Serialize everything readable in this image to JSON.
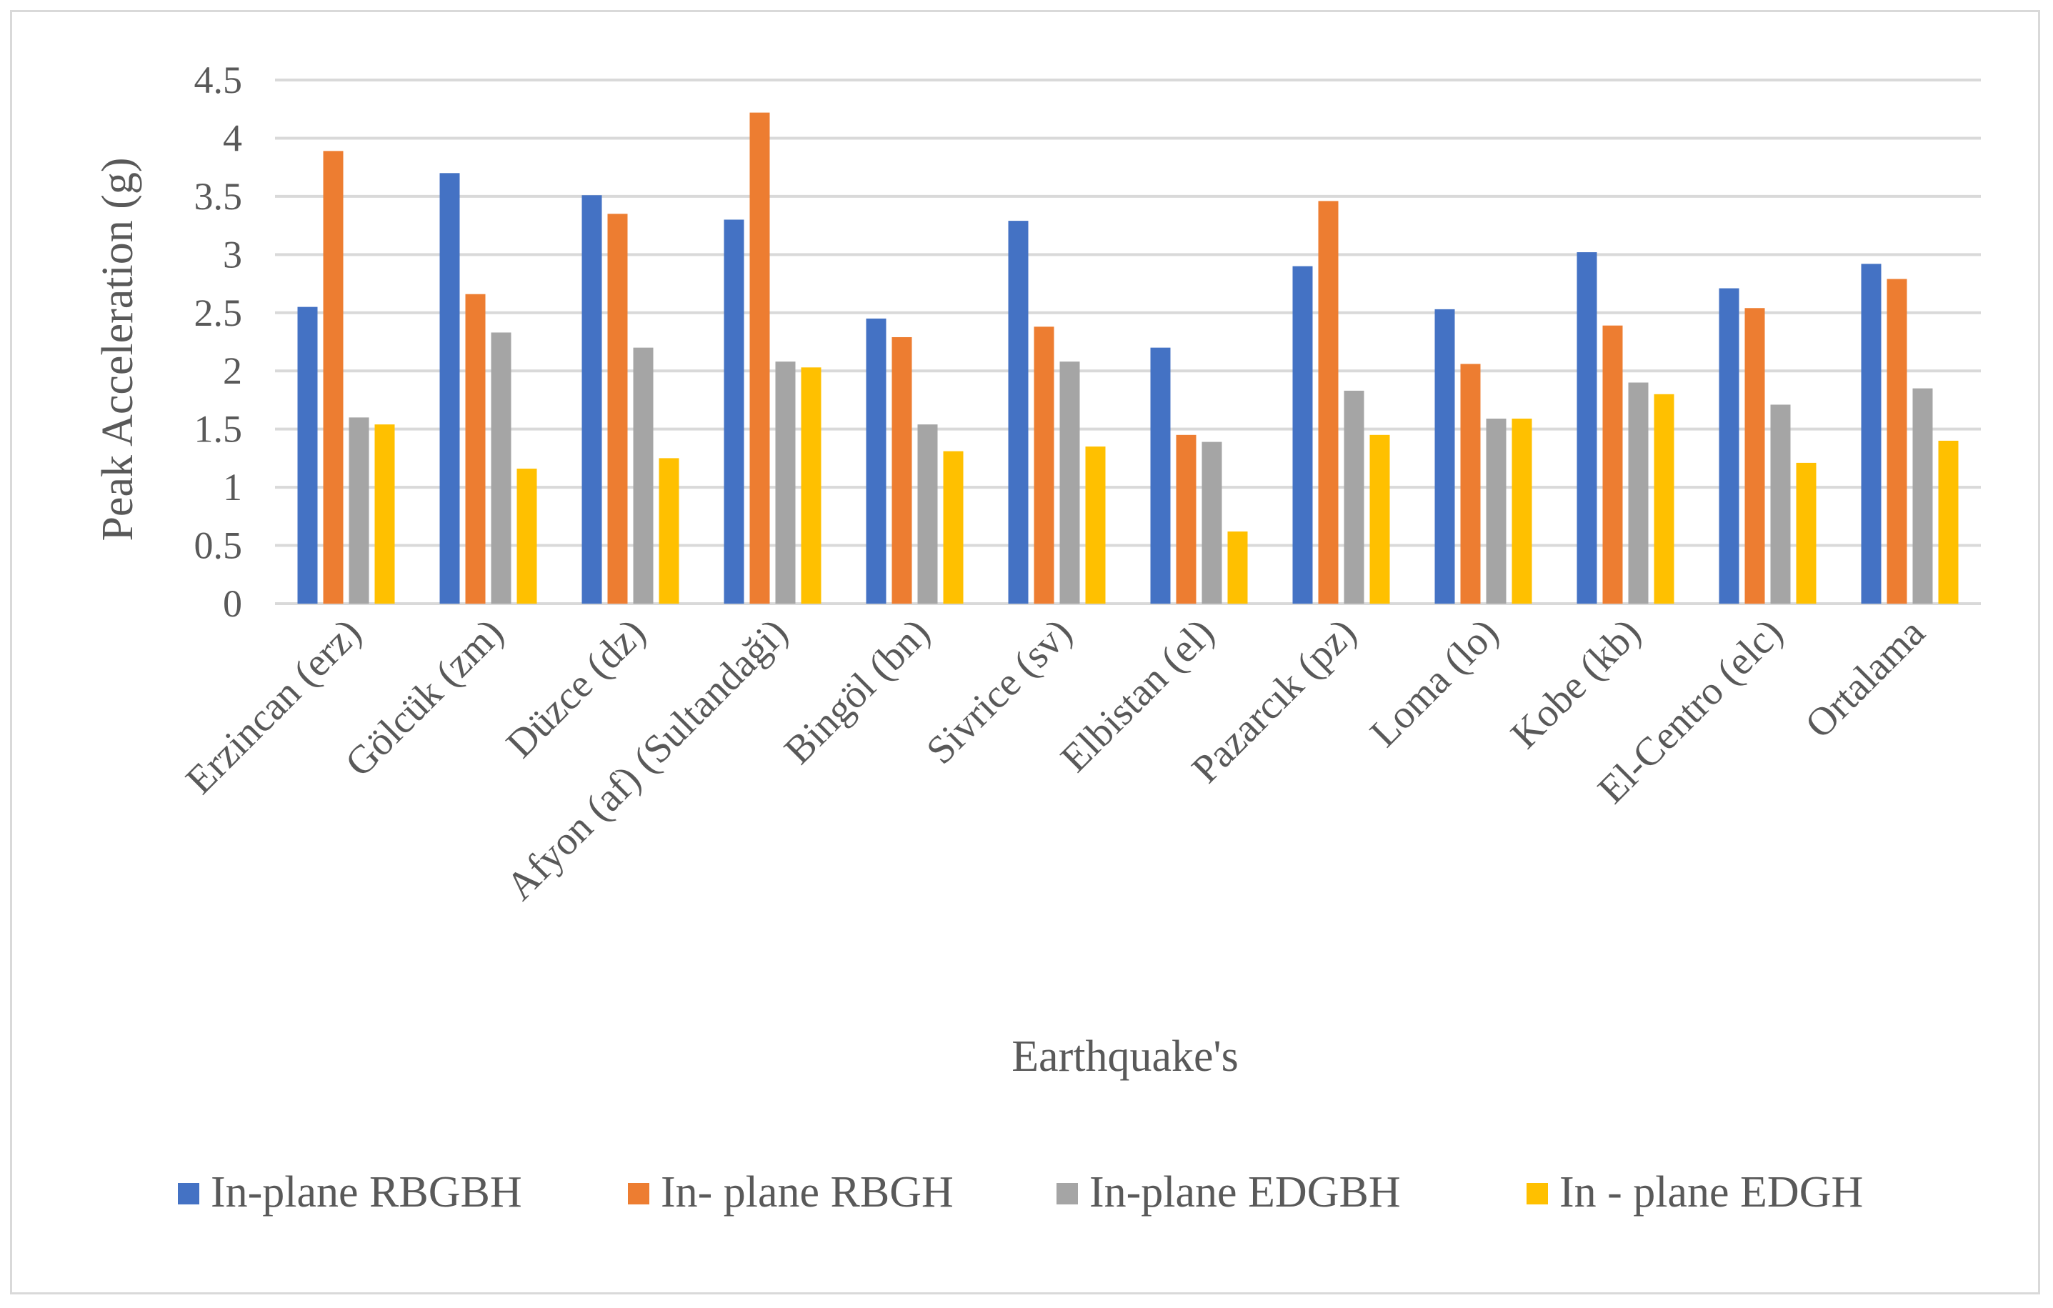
{
  "chart_data": {
    "type": "bar",
    "title": "",
    "xlabel": "Earthquake's",
    "ylabel": "Peak Acceleration (g)",
    "ylim": [
      0,
      4.5
    ],
    "yticks": [
      0,
      0.5,
      1,
      1.5,
      2,
      2.5,
      3,
      3.5,
      4,
      4.5
    ],
    "ytick_labels": [
      "0",
      "0.5",
      "1",
      "1.5",
      "2",
      "2.5",
      "3",
      "3.5",
      "4",
      "4.5"
    ],
    "grid": true,
    "legend": "bottom",
    "categories": [
      "Erzincan (erz)",
      "Gölcük (zm)",
      "Düzce (dz)",
      "Afyon (af) (Sultandaği)",
      "Bingöl (bn)",
      "Sivrice (sv)",
      "Elbistan (el)",
      "Pazarcık (pz)",
      "Loma (lo)",
      "Kobe (kb)",
      "El-Centro (elc)",
      "Ortalama"
    ],
    "series": [
      {
        "name": "In-plane RBGBH",
        "color": "#4472c4",
        "values": [
          2.55,
          3.7,
          3.51,
          3.3,
          2.45,
          3.29,
          2.2,
          2.9,
          2.53,
          3.02,
          2.71,
          2.92
        ]
      },
      {
        "name": "In- plane RBGH",
        "color": "#ed7d31",
        "values": [
          3.89,
          2.66,
          3.35,
          4.22,
          2.29,
          2.38,
          1.45,
          3.46,
          2.06,
          2.39,
          2.54,
          2.79
        ]
      },
      {
        "name": "In-plane EDGBH",
        "color": "#a5a5a5",
        "values": [
          1.6,
          2.33,
          2.2,
          2.08,
          1.54,
          2.08,
          1.39,
          1.83,
          1.59,
          1.9,
          1.71,
          1.85
        ]
      },
      {
        "name": "In - plane EDGH",
        "color": "#ffc000",
        "values": [
          1.54,
          1.16,
          1.25,
          2.03,
          1.31,
          1.35,
          0.62,
          1.45,
          1.59,
          1.8,
          1.21,
          1.4
        ]
      }
    ]
  }
}
